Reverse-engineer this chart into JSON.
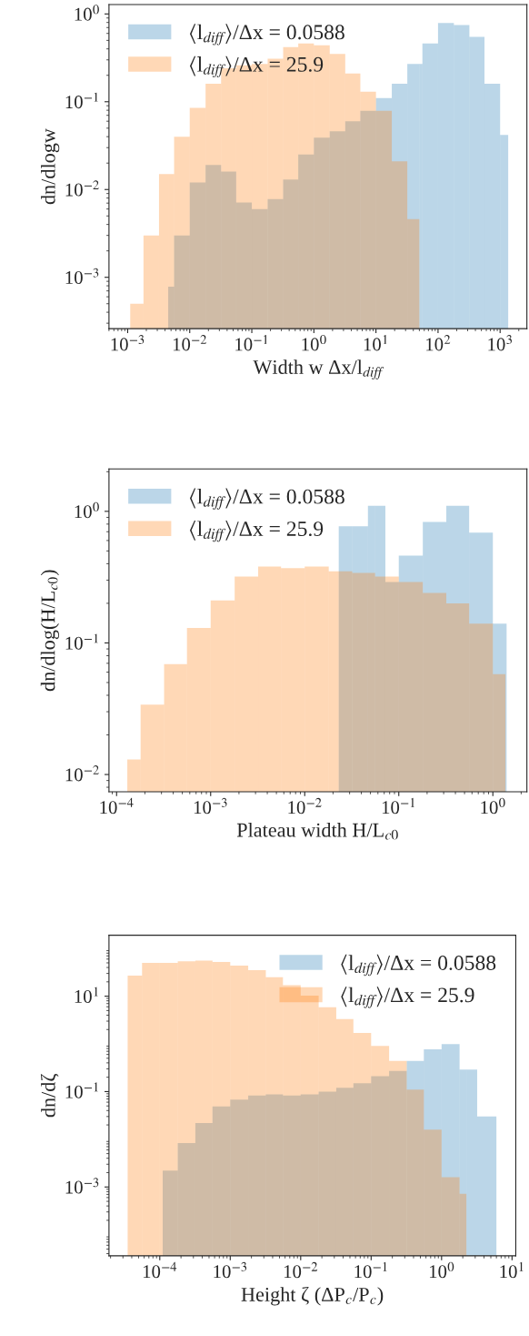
{
  "chart_data": [
    {
      "type": "histogram",
      "xlabel": "Width w Δx/l$_{diff}$",
      "ylabel": "dn/dlogw",
      "log": "xy",
      "legend": "top left",
      "grid": false,
      "xlim": [
        0.0005,
        2700
      ],
      "ylim": [
        0.00026,
        1.28
      ],
      "xticks": [
        {
          "value": 0.001,
          "label": "10$^{−3}$"
        },
        {
          "value": 0.01,
          "label": "10$^{−2}$"
        },
        {
          "value": 0.1,
          "label": "10$^{−1}$"
        },
        {
          "value": 1,
          "label": "10$^{0}$"
        },
        {
          "value": 10,
          "label": "10$^{1}$"
        },
        {
          "value": 100,
          "label": "10$^{2}$"
        },
        {
          "value": 1000,
          "label": "10$^{3}$"
        }
      ],
      "yticks": [
        {
          "value": 0.001,
          "label": "10$^{−3}$"
        },
        {
          "value": 0.01,
          "label": "10$^{−2}$"
        },
        {
          "value": 0.1,
          "label": "10$^{−1}$"
        },
        {
          "value": 1,
          "label": "10$^{0}$"
        }
      ],
      "bins": [
        0.0011,
        0.0018,
        0.0032,
        0.0045,
        0.0056,
        0.01,
        0.018,
        0.032,
        0.056,
        0.1,
        0.18,
        0.32,
        0.56,
        1,
        1.8,
        3.2,
        5.6,
        10,
        18,
        32,
        50,
        56,
        100,
        180,
        320,
        560,
        1000,
        1350
      ],
      "series": [
        {
          "name": "⟨l$_{diff}$⟩/Δx = 0.0588",
          "color": "#1f77b4",
          "values": [
            null,
            null,
            null,
            0.00078,
            0.003,
            0.012,
            0.019,
            0.016,
            0.0071,
            0.006,
            0.0078,
            0.013,
            0.025,
            0.039,
            0.046,
            0.06,
            0.079,
            0.11,
            0.16,
            0.27,
            0.27,
            0.46,
            0.79,
            0.75,
            0.55,
            0.16,
            0.042
          ]
        },
        {
          "name": "⟨l$_{diff}$⟩/Δx = 25.9",
          "color": "#ff7f0e",
          "values": [
            0.0005,
            0.003,
            0.015,
            0.015,
            0.04,
            0.085,
            0.16,
            0.24,
            0.26,
            0.27,
            0.31,
            0.42,
            0.46,
            0.44,
            0.35,
            0.21,
            0.13,
            0.079,
            0.021,
            0.0046,
            null,
            null,
            null,
            null,
            null,
            null,
            null
          ]
        }
      ]
    },
    {
      "type": "histogram",
      "xlabel": "Plateau width H/L$_{c0}$",
      "ylabel": "dn/dlog(H/L$_{c0}$)",
      "log": "xy",
      "legend": "top left",
      "grid": false,
      "xlim": [
        8.3e-05,
        2.3
      ],
      "ylim": [
        0.0074,
        2.1
      ],
      "xticks": [
        {
          "value": 0.0001,
          "label": "10$^{−4}$"
        },
        {
          "value": 0.001,
          "label": "10$^{−3}$"
        },
        {
          "value": 0.01,
          "label": "10$^{−2}$"
        },
        {
          "value": 0.1,
          "label": "10$^{−1}$"
        },
        {
          "value": 1,
          "label": "10$^{0}$"
        }
      ],
      "yticks": [
        {
          "value": 0.01,
          "label": "10$^{−2}$"
        },
        {
          "value": 0.1,
          "label": "10$^{−1}$"
        },
        {
          "value": 1,
          "label": "10$^{0}$"
        }
      ],
      "bins": [
        0.00013,
        0.00018,
        0.00032,
        0.00056,
        0.001,
        0.0018,
        0.0032,
        0.0056,
        0.01,
        0.018,
        0.023,
        0.032,
        0.047,
        0.056,
        0.072,
        0.1,
        0.18,
        0.32,
        0.56,
        1,
        1.36,
        1.4
      ],
      "series": [
        {
          "name": "⟨l$_{diff}$⟩/Δx = 0.0588",
          "color": "#1f77b4",
          "values": [
            null,
            null,
            null,
            null,
            null,
            null,
            null,
            null,
            null,
            null,
            0.77,
            0.77,
            1.1,
            1.1,
            0.29,
            0.46,
            0.83,
            1.1,
            0.69,
            0.14,
            0.14
          ]
        },
        {
          "name": "⟨l$_{diff}$⟩/Δx = 25.9",
          "color": "#ff7f0e",
          "values": [
            0.013,
            0.034,
            0.069,
            0.13,
            0.21,
            0.32,
            0.38,
            0.37,
            0.38,
            0.35,
            0.35,
            0.34,
            0.34,
            0.32,
            0.32,
            0.29,
            0.24,
            0.2,
            0.14,
            0.058,
            null
          ]
        }
      ]
    },
    {
      "type": "histogram",
      "xlabel": "Height ζ (ΔP$_{c}$/P$_{c}$)",
      "ylabel": "dn/dζ",
      "log": "xy",
      "legend": "top right",
      "grid": false,
      "xlim": [
        1.9e-05,
        11.3
      ],
      "ylim": [
        3.6e-05,
        190
      ],
      "xticks": [
        {
          "value": 0.0001,
          "label": "10$^{−4}$"
        },
        {
          "value": 0.001,
          "label": "10$^{−3}$"
        },
        {
          "value": 0.01,
          "label": "10$^{−2}$"
        },
        {
          "value": 0.1,
          "label": "10$^{−1}$"
        },
        {
          "value": 1,
          "label": "10$^{0}$"
        },
        {
          "value": 10,
          "label": "10$^{1}$"
        }
      ],
      "yticks": [
        {
          "value": 0.001,
          "label": "10$^{−3}$"
        },
        {
          "value": 0.1,
          "label": "10$^{−1}$"
        },
        {
          "value": 10,
          "label": "10$^{1}$"
        }
      ],
      "bins": [
        3.5e-05,
        5.6e-05,
        0.0001,
        0.00011,
        0.00018,
        0.00032,
        0.00056,
        0.001,
        0.0018,
        0.0032,
        0.0056,
        0.01,
        0.018,
        0.032,
        0.056,
        0.1,
        0.18,
        0.32,
        0.56,
        1,
        1.8,
        2.25,
        3.2,
        6
      ],
      "series": [
        {
          "name": "⟨l$_{diff}$⟩/Δx = 0.0588",
          "color": "#1f77b4",
          "values": [
            null,
            null,
            null,
            0.0022,
            0.0083,
            0.022,
            0.049,
            0.068,
            0.083,
            0.087,
            0.083,
            0.087,
            0.1,
            0.12,
            0.15,
            0.21,
            0.27,
            0.44,
            0.77,
            0.99,
            0.29,
            0.29,
            0.03
          ]
        },
        {
          "name": "⟨l$_{diff}$⟩/Δx = 25.9",
          "color": "#ff7f0e",
          "values": [
            27,
            50,
            50,
            50,
            54,
            56,
            52,
            44,
            35,
            25,
            17,
            10.3,
            5.9,
            3.3,
            1.7,
            0.91,
            0.44,
            0.11,
            0.016,
            0.0016,
            0.00072,
            null,
            null
          ]
        }
      ]
    }
  ]
}
